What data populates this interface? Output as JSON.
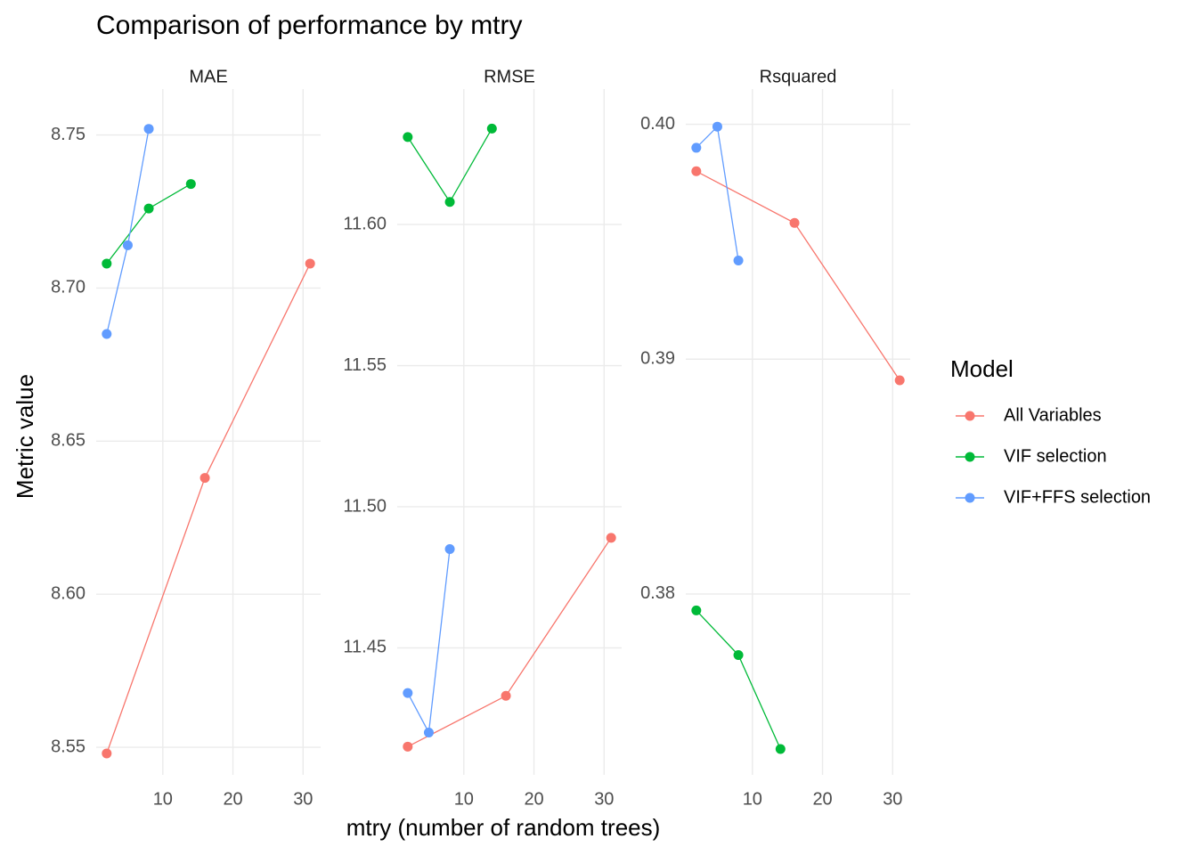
{
  "figure": {
    "title": "Comparison of performance by mtry",
    "x_label": "mtry (number of random trees)",
    "y_label": "Metric value",
    "legend_title": "Model",
    "legend": [
      {
        "name": "All Variables",
        "color": "#f8766d"
      },
      {
        "name": "VIF selection",
        "color": "#00ba38"
      },
      {
        "name": "VIF+FFS selection",
        "color": "#619cff"
      }
    ]
  },
  "chart_data": [
    {
      "type": "line",
      "title": "MAE",
      "grid": true,
      "xlim": [
        0.5,
        32.5
      ],
      "xticks": [
        10,
        20,
        30
      ],
      "ylim": [
        8.541,
        8.765
      ],
      "yticks": [
        8.55,
        {
          "value": 8.6,
          "label": "8.60"
        },
        8.65,
        {
          "value": 8.7,
          "label": "8.70"
        },
        8.75
      ],
      "series": [
        {
          "x": [
            2,
            16,
            31
          ],
          "values": [
            8.548,
            8.638,
            8.708
          ]
        },
        {
          "x": [
            2,
            8,
            14
          ],
          "values": [
            8.708,
            8.726,
            8.734
          ]
        },
        {
          "x": [
            2,
            5,
            8
          ],
          "values": [
            8.685,
            8.714,
            8.752
          ]
        }
      ]
    },
    {
      "type": "line",
      "title": "RMSE",
      "grid": true,
      "xlim": [
        0.5,
        32.5
      ],
      "xticks": [
        10,
        20,
        30
      ],
      "ylim": [
        11.405,
        11.648
      ],
      "yticks": [
        11.45,
        {
          "value": 11.5,
          "label": "11.50"
        },
        11.55,
        {
          "value": 11.6,
          "label": "11.60"
        }
      ],
      "series": [
        {
          "x": [
            2,
            16,
            31
          ],
          "values": [
            11.415,
            11.433,
            11.489
          ]
        },
        {
          "x": [
            2,
            8,
            14
          ],
          "values": [
            11.631,
            11.608,
            11.634
          ]
        },
        {
          "x": [
            2,
            5,
            8
          ],
          "values": [
            11.434,
            11.42,
            11.485
          ]
        }
      ]
    },
    {
      "type": "line",
      "title": "Rsquared",
      "grid": true,
      "xlim": [
        0.5,
        32.5
      ],
      "xticks": [
        10,
        20,
        30
      ],
      "ylim": [
        0.3723,
        0.4015
      ],
      "yticks": [
        0.38,
        0.39,
        {
          "value": 0.4,
          "label": "0.40"
        }
      ],
      "series": [
        {
          "x": [
            2,
            16,
            31
          ],
          "values": [
            0.398,
            0.3958,
            0.3891
          ]
        },
        {
          "x": [
            2,
            8,
            14
          ],
          "values": [
            0.3793,
            0.3774,
            0.3734
          ]
        },
        {
          "x": [
            2,
            5,
            8
          ],
          "values": [
            0.399,
            0.3999,
            0.3942
          ]
        }
      ]
    }
  ]
}
